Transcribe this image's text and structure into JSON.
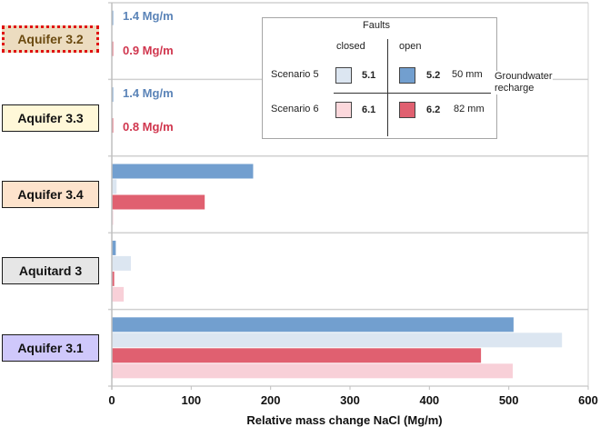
{
  "chart_data": {
    "type": "bar",
    "orientation": "horizontal",
    "title": "",
    "xlabel": "Relative mass change NaCl (Mg/m)",
    "ylabel": "",
    "xlim": [
      0,
      600
    ],
    "xticks": [
      0,
      100,
      200,
      300,
      400,
      500,
      600
    ],
    "grid": "horizontal separators between categories",
    "categories": [
      "Aquifer 3.2",
      "Aquifer 3.3",
      "Aquifer 3.4",
      "Aquitard 3",
      "Aquifer 3.1"
    ],
    "category_styles": [
      {
        "fill": "#ecdcc0",
        "dotted_red_border": true
      },
      {
        "fill": "#fff8d8",
        "dotted_red_border": false
      },
      {
        "fill": "#fde3cc",
        "dotted_red_border": false
      },
      {
        "fill": "#e6e6e6",
        "dotted_red_border": false
      },
      {
        "fill": "#cfc8fb",
        "dotted_red_border": false
      }
    ],
    "series": [
      {
        "name": "5.2",
        "scenario": "Scenario 5",
        "faults": "open",
        "color": "#729fcf",
        "values": [
          1.4,
          1.4,
          178,
          5,
          506
        ]
      },
      {
        "name": "5.1",
        "scenario": "Scenario 5",
        "faults": "closed",
        "color": "#dce6f1",
        "values": [
          0,
          0,
          6,
          24,
          567
        ]
      },
      {
        "name": "6.2",
        "scenario": "Scenario 6",
        "faults": "open",
        "color": "#e06070",
        "values": [
          0.9,
          0.8,
          117,
          3,
          465
        ]
      },
      {
        "name": "6.1",
        "scenario": "Scenario 6",
        "faults": "closed",
        "color": "#f8d0d8",
        "values": [
          0,
          0,
          1,
          15,
          505
        ]
      }
    ],
    "annotations": [
      {
        "category": "Aquifer 3.2",
        "series": "open",
        "text": "1.4 Mg/m",
        "color": "#5b84b8"
      },
      {
        "category": "Aquifer 3.2",
        "series": "open-scenario6",
        "text": "0.9 Mg/m",
        "color": "#d0364e"
      },
      {
        "category": "Aquifer 3.3",
        "series": "open",
        "text": "1.4 Mg/m",
        "color": "#5b84b8"
      },
      {
        "category": "Aquifer 3.3",
        "series": "open-scenario6",
        "text": "0.8 Mg/m",
        "color": "#d0364e"
      }
    ],
    "legend": {
      "placement": "top-right",
      "title": "Faults",
      "col_closed": "closed",
      "col_open": "open",
      "rows": [
        {
          "label": "Scenario 5",
          "closed": "5.1",
          "open": "5.2",
          "recharge": "50 mm"
        },
        {
          "label": "Scenario 6",
          "closed": "6.1",
          "open": "6.2",
          "recharge": "82 mm"
        }
      ],
      "side_label_1": "Groundwater",
      "side_label_2": "recharge"
    }
  }
}
